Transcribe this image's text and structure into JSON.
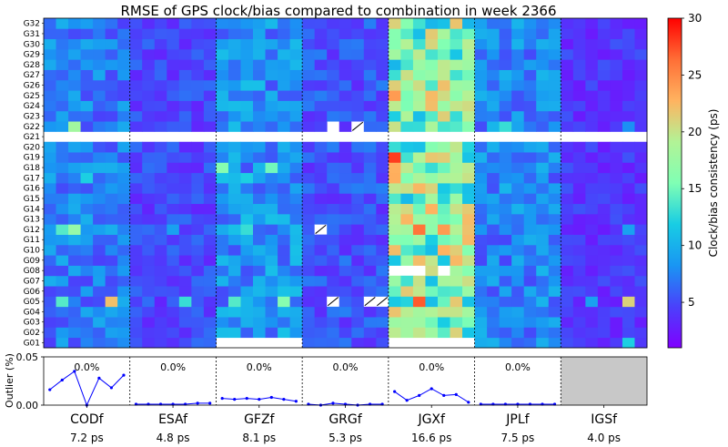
{
  "chart_data": {
    "type": "heatmap",
    "title": "RMSE of GPS clock/bias compared to combination in week 2366",
    "colorbar": {
      "label": "Clock/bias consistency (ps)",
      "ticks": [
        "5",
        "10",
        "15",
        "20",
        "25",
        "30"
      ],
      "range": [
        1,
        30
      ],
      "colormap": "rainbow"
    },
    "satellites": [
      "G01",
      "G02",
      "G03",
      "G04",
      "G05",
      "G06",
      "G07",
      "G08",
      "G09",
      "G10",
      "G11",
      "G12",
      "G13",
      "G14",
      "G15",
      "G16",
      "G17",
      "G18",
      "G19",
      "G20",
      "G21",
      "G22",
      "G23",
      "G24",
      "G25",
      "G26",
      "G27",
      "G28",
      "G29",
      "G30",
      "G31",
      "G32"
    ],
    "missing_satellite": "G21",
    "days_per_solution": 7,
    "solutions": [
      {
        "name": "CODf",
        "rms_label": "7.2 ps",
        "base": 7.2,
        "outlier_label": "0.0%",
        "outliers": [
          0.016,
          0.026,
          0.035,
          0.0,
          0.028,
          0.018,
          0.031
        ],
        "hot_cells": [
          {
            "sat": "G22",
            "day": 2,
            "value": 18
          },
          {
            "sat": "G12",
            "day": 1,
            "value": 14
          },
          {
            "sat": "G12",
            "day": 2,
            "value": 17
          },
          {
            "sat": "G05",
            "day": 1,
            "value": 14
          },
          {
            "sat": "G05",
            "day": 5,
            "value": 22
          },
          {
            "sat": "G17",
            "day": 3,
            "value": 12
          }
        ],
        "blank_cells": [],
        "hatched_cells": []
      },
      {
        "name": "ESAf",
        "rms_label": "4.8 ps",
        "base": 4.8,
        "outlier_label": "0.0%",
        "outliers": [
          0.001,
          0.001,
          0.001,
          0.001,
          0.001,
          0.002,
          0.002
        ],
        "hot_cells": [
          {
            "sat": "G05",
            "day": 4,
            "value": 13
          },
          {
            "sat": "G12",
            "day": 3,
            "value": 9
          }
        ],
        "blank_cells": [],
        "hatched_cells": []
      },
      {
        "name": "GFZf",
        "rms_label": "8.1 ps",
        "base": 8.1,
        "outlier_label": "0.0%",
        "outliers": [
          0.007,
          0.006,
          0.007,
          0.006,
          0.008,
          0.006,
          0.004
        ],
        "hot_cells": [
          {
            "sat": "G18",
            "day": 0,
            "value": 16
          },
          {
            "sat": "G18",
            "day": 4,
            "value": 15
          },
          {
            "sat": "G05",
            "day": 1,
            "value": 14
          },
          {
            "sat": "G05",
            "day": 5,
            "value": 16
          },
          {
            "sat": "G12",
            "day": 2,
            "value": 13
          },
          {
            "sat": "G17",
            "day": 2,
            "value": 12
          }
        ],
        "blank_cells": [
          {
            "sat": "G01",
            "day": 0
          },
          {
            "sat": "G01",
            "day": 1
          },
          {
            "sat": "G01",
            "day": 2
          },
          {
            "sat": "G01",
            "day": 3
          },
          {
            "sat": "G01",
            "day": 4
          },
          {
            "sat": "G01",
            "day": 5
          },
          {
            "sat": "G01",
            "day": 6
          }
        ],
        "hatched_cells": []
      },
      {
        "name": "GRGf",
        "rms_label": "5.3 ps",
        "base": 5.3,
        "outlier_label": "0.0%",
        "outliers": [
          0.001,
          0.0,
          0.002,
          0.001,
          0.0,
          0.001,
          0.001
        ],
        "hot_cells": [
          {
            "sat": "G05",
            "day": 2,
            "value": 10
          }
        ],
        "blank_cells": [
          {
            "sat": "G22",
            "day": 2
          }
        ],
        "hatched_cells": [
          {
            "sat": "G22",
            "day": 4
          },
          {
            "sat": "G12",
            "day": 1
          },
          {
            "sat": "G05",
            "day": 2
          },
          {
            "sat": "G05",
            "day": 5
          },
          {
            "sat": "G05",
            "day": 6
          }
        ]
      },
      {
        "name": "JGXf",
        "rms_label": "16.6 ps",
        "base": 16.6,
        "outlier_label": "0.0%",
        "outliers": [
          0.014,
          0.005,
          0.01,
          0.017,
          0.01,
          0.011,
          0.003
        ],
        "hot_cells": [
          {
            "sat": "G19",
            "day": 0,
            "value": 28
          },
          {
            "sat": "G25",
            "day": 0,
            "value": 24
          },
          {
            "sat": "G17",
            "day": 0,
            "value": 23
          },
          {
            "sat": "G12",
            "day": 2,
            "value": 26
          },
          {
            "sat": "G12",
            "day": 4,
            "value": 24
          },
          {
            "sat": "G05",
            "day": 2,
            "value": 27
          },
          {
            "sat": "G26",
            "day": 4,
            "value": 22
          },
          {
            "sat": "G02",
            "day": 5,
            "value": 21
          }
        ],
        "blank_cells": [
          {
            "sat": "G08",
            "day": 0
          },
          {
            "sat": "G08",
            "day": 1
          },
          {
            "sat": "G08",
            "day": 2
          },
          {
            "sat": "G08",
            "day": 4
          },
          {
            "sat": "G01",
            "day": 0
          },
          {
            "sat": "G01",
            "day": 1
          },
          {
            "sat": "G01",
            "day": 2
          },
          {
            "sat": "G01",
            "day": 3
          },
          {
            "sat": "G01",
            "day": 4
          },
          {
            "sat": "G01",
            "day": 5
          },
          {
            "sat": "G01",
            "day": 6
          }
        ],
        "hatched_cells": []
      },
      {
        "name": "JPLf",
        "rms_label": "7.5 ps",
        "base": 7.5,
        "outlier_label": "0.0%",
        "outliers": [
          0.001,
          0.001,
          0.001,
          0.001,
          0.001,
          0.001,
          0.001
        ],
        "hot_cells": [
          {
            "sat": "G22",
            "day": 2,
            "value": 13
          }
        ],
        "blank_cells": [],
        "hatched_cells": []
      },
      {
        "name": "IGSf",
        "rms_label": "4.0 ps",
        "base": 4.0,
        "outlier_label": "",
        "outliers": [],
        "hot_cells": [
          {
            "sat": "G05",
            "day": 5,
            "value": 21
          },
          {
            "sat": "G12",
            "day": 5,
            "value": 9
          },
          {
            "sat": "G01",
            "day": 5,
            "value": 12
          },
          {
            "sat": "G22",
            "day": 5,
            "value": 8
          },
          {
            "sat": "G05",
            "day": 2,
            "value": 9
          }
        ],
        "blank_cells": [],
        "hatched_cells": []
      }
    ],
    "outlier_panel": {
      "ylabel": "Outlier (%)",
      "yticks": [
        "0.00",
        "0.05"
      ],
      "ylim": [
        0,
        0.05
      ],
      "no_data_solution": "IGSf"
    }
  }
}
